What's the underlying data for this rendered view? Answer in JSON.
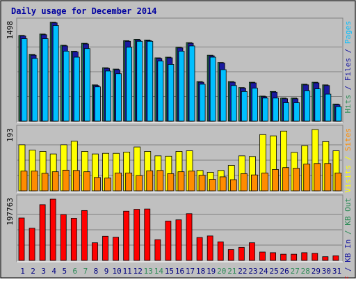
{
  "colors": {
    "background": "#c0c0c0",
    "title": "#0000a0",
    "hits": "#2e8b57",
    "files": "#1a1aa0",
    "pages": "#00bfff",
    "visits": "#ffff00",
    "sites": "#ff8c00",
    "kb": "#ff0000",
    "weekend_day_label": "#2e8b57",
    "weekday_label": "#000080"
  },
  "chart_data": {
    "type": "bar",
    "title": "Daily usage for December 2014",
    "categories": [
      "1",
      "2",
      "3",
      "4",
      "5",
      "6",
      "7",
      "8",
      "9",
      "10",
      "11",
      "12",
      "13",
      "14",
      "15",
      "16",
      "17",
      "18",
      "19",
      "20",
      "21",
      "22",
      "23",
      "24",
      "25",
      "26",
      "27",
      "28",
      "29",
      "30",
      "31"
    ],
    "weekend_days": [
      "6",
      "7",
      "13",
      "14",
      "20",
      "21",
      "27",
      "28"
    ],
    "panels": [
      {
        "id": "hits_files_pages",
        "max_label": "1498",
        "ylim": [
          0,
          1498
        ],
        "legend": [
          {
            "text": "Hits",
            "color_key": "hits"
          },
          {
            "text": " / ",
            "color_key": "files"
          },
          {
            "text": "Files",
            "color_key": "files"
          },
          {
            "text": " / ",
            "color_key": "files"
          },
          {
            "text": "Pages",
            "color_key": "pages"
          }
        ],
        "series": [
          {
            "name": "Hits",
            "color_key": "hits",
            "values": [
              1300,
              1010,
              1320,
              1498,
              1150,
              1060,
              1180,
              550,
              810,
              790,
              1220,
              1240,
              1230,
              960,
              970,
              1120,
              1190,
              600,
              1000,
              890,
              600,
              510,
              590,
              380,
              450,
              350,
              350,
              560,
              590,
              550,
              260
            ]
          },
          {
            "name": "Files",
            "color_key": "files",
            "values": [
              1290,
              1000,
              1310,
              1490,
              1140,
              1050,
              1170,
              540,
              800,
              780,
              1210,
              1230,
              1220,
              950,
              960,
              1110,
              1180,
              590,
              990,
              880,
              590,
              500,
              580,
              370,
              440,
              340,
              340,
              550,
              580,
              540,
              250
            ]
          },
          {
            "name": "Pages",
            "color_key": "pages",
            "values": [
              1250,
              950,
              1250,
              1450,
              1060,
              970,
              1100,
              520,
              760,
              720,
              1120,
              1210,
              1210,
              910,
              860,
              1060,
              1140,
              560,
              970,
              780,
              540,
              450,
              500,
              350,
              350,
              280,
              280,
              460,
              490,
              410,
              220
            ]
          }
        ]
      },
      {
        "id": "visits_sites",
        "max_label": "193",
        "ylim": [
          0,
          193
        ],
        "legend": [
          {
            "text": "Visits",
            "color_key": "visits"
          },
          {
            "text": " / ",
            "color_key": "visits"
          },
          {
            "text": "Sites",
            "color_key": "sites"
          }
        ],
        "series": [
          {
            "name": "Visits",
            "color_key": "visits",
            "values": [
              145,
              128,
              124,
              116,
              145,
              156,
              124,
              116,
              118,
              118,
              122,
              138,
              124,
              110,
              109,
              124,
              126,
              64,
              58,
              64,
              80,
              110,
              108,
              177,
              173,
              188,
              121,
              142,
              193,
              155,
              126
            ]
          },
          {
            "name": "Sites",
            "color_key": "sites",
            "values": [
              62,
              62,
              55,
              60,
              65,
              64,
              60,
              42,
              40,
              56,
              56,
              48,
              63,
              64,
              54,
              60,
              62,
              49,
              36,
              44,
              35,
              54,
              50,
              56,
              67,
              73,
              71,
              84,
              86,
              86,
              56
            ]
          }
        ]
      },
      {
        "id": "kb",
        "max_label": "197763",
        "ylim": [
          0,
          197763
        ],
        "legend": [
          {
            "text": "KB F",
            "color_key": "kb"
          },
          {
            "text": " / ",
            "color_key": "files"
          },
          {
            "text": "KB In",
            "color_key": "files"
          },
          {
            "text": " / ",
            "color_key": "hits"
          },
          {
            "text": "KB Out",
            "color_key": "hits"
          }
        ],
        "series": [
          {
            "name": "KB F",
            "color_key": "kb",
            "values": [
              137000,
              104000,
              180000,
              197763,
              148000,
              136000,
              161000,
              57000,
              78000,
              75000,
              159000,
              165000,
              166000,
              67000,
              127000,
              131000,
              151000,
              74000,
              79000,
              60000,
              35000,
              42000,
              57000,
              27000,
              25000,
              20000,
              20000,
              25000,
              23000,
              12000,
              15000
            ]
          }
        ]
      }
    ]
  }
}
